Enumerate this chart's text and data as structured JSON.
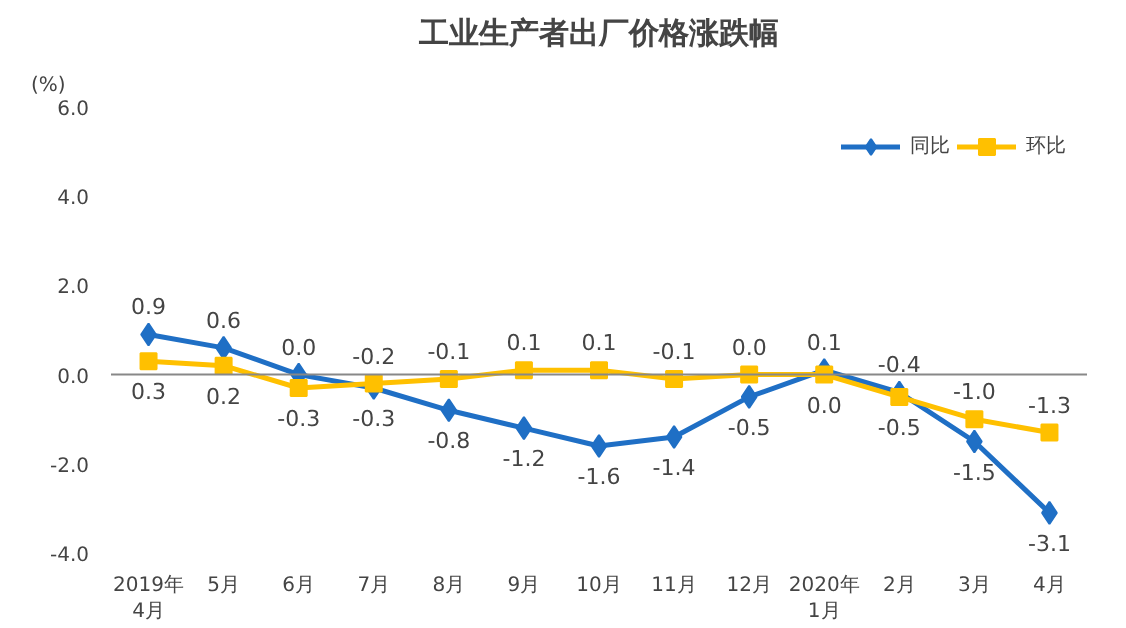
{
  "chart_data": {
    "type": "line",
    "title": "工业生产者出厂价格涨跌幅",
    "ylabel": "(%)",
    "categories": [
      "2019年\n4月",
      "5月",
      "6月",
      "7月",
      "8月",
      "9月",
      "10月",
      "11月",
      "12月",
      "2020年\n1月",
      "2月",
      "3月",
      "4月"
    ],
    "series": [
      {
        "name": "同比",
        "color": "#1f6fc5",
        "marker": "diamond",
        "values": [
          0.9,
          0.6,
          0.0,
          -0.3,
          -0.8,
          -1.2,
          -1.6,
          -1.4,
          -0.5,
          0.1,
          -0.4,
          -1.5,
          -3.1
        ],
        "value_labels": [
          "0.9",
          "0.6",
          "0.0",
          "-0.3",
          "-0.8",
          "-1.2",
          "-1.6",
          "-1.4",
          "-0.5",
          "0.1",
          "-0.4",
          "-1.5",
          "-3.1"
        ]
      },
      {
        "name": "环比",
        "color": "#ffc000",
        "marker": "square",
        "values": [
          0.3,
          0.2,
          -0.3,
          -0.2,
          -0.1,
          0.1,
          0.1,
          -0.1,
          0.0,
          0.0,
          -0.5,
          -1.0,
          -1.3
        ],
        "value_labels": [
          "0.3",
          "0.2",
          "-0.3",
          "-0.2",
          "-0.1",
          "0.1",
          "0.1",
          "-0.1",
          "0.0",
          "0.0",
          "-0.5",
          "-1.0",
          "-1.3"
        ]
      }
    ],
    "ylim": [
      -4,
      6
    ],
    "yticks": [
      {
        "value": -4,
        "label": "-4.0"
      },
      {
        "value": -2,
        "label": "-2.0"
      },
      {
        "value": 0,
        "label": "0.0"
      },
      {
        "value": 2,
        "label": "2.0"
      },
      {
        "value": 4,
        "label": "4.0"
      },
      {
        "value": 6,
        "label": "6.0"
      }
    ],
    "ref_lines": [
      {
        "axis": "y",
        "value": 0,
        "color": "#888888"
      }
    ],
    "grid": false,
    "legend": "top right",
    "line_style": "solid"
  }
}
